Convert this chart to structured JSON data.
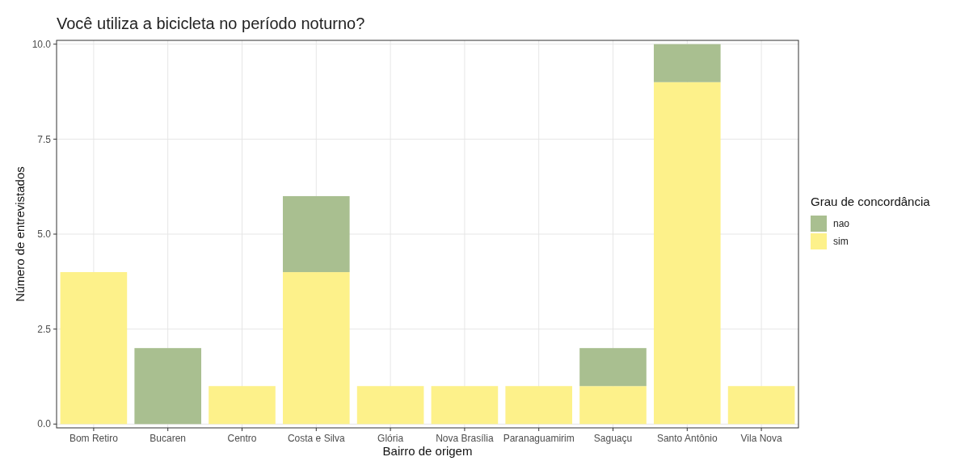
{
  "chart_data": {
    "type": "bar",
    "title": "Você utiliza a bicicleta no período noturno?",
    "xlabel": "Bairro de origem",
    "ylabel": "Número de entrevistados",
    "legend_title": "Grau de concordância",
    "categories": [
      "Bom Retiro",
      "Bucaren",
      "Centro",
      "Costa e Silva",
      "Glória",
      "Nova Brasília",
      "Paranaguamirim",
      "Saguaçu",
      "Santo Antônio",
      "Vila Nova"
    ],
    "stacked": true,
    "series": [
      {
        "name": "sim",
        "color": "#fdf18a",
        "values": [
          4,
          null,
          1,
          4,
          1,
          1,
          1,
          1,
          9,
          1
        ]
      },
      {
        "name": "nao",
        "color": "#a9bf90",
        "values": [
          null,
          2,
          null,
          2,
          null,
          null,
          null,
          1,
          1,
          null
        ]
      }
    ],
    "ylim": [
      -0.1,
      10.1
    ],
    "yticks": [
      {
        "value": 0,
        "label": "0.0"
      },
      {
        "value": 2.5,
        "label": "2.5"
      },
      {
        "value": 5,
        "label": "5.0"
      },
      {
        "value": 7.5,
        "label": "7.5"
      },
      {
        "value": 10,
        "label": "10.0"
      }
    ],
    "grid": true,
    "legend": "right"
  }
}
